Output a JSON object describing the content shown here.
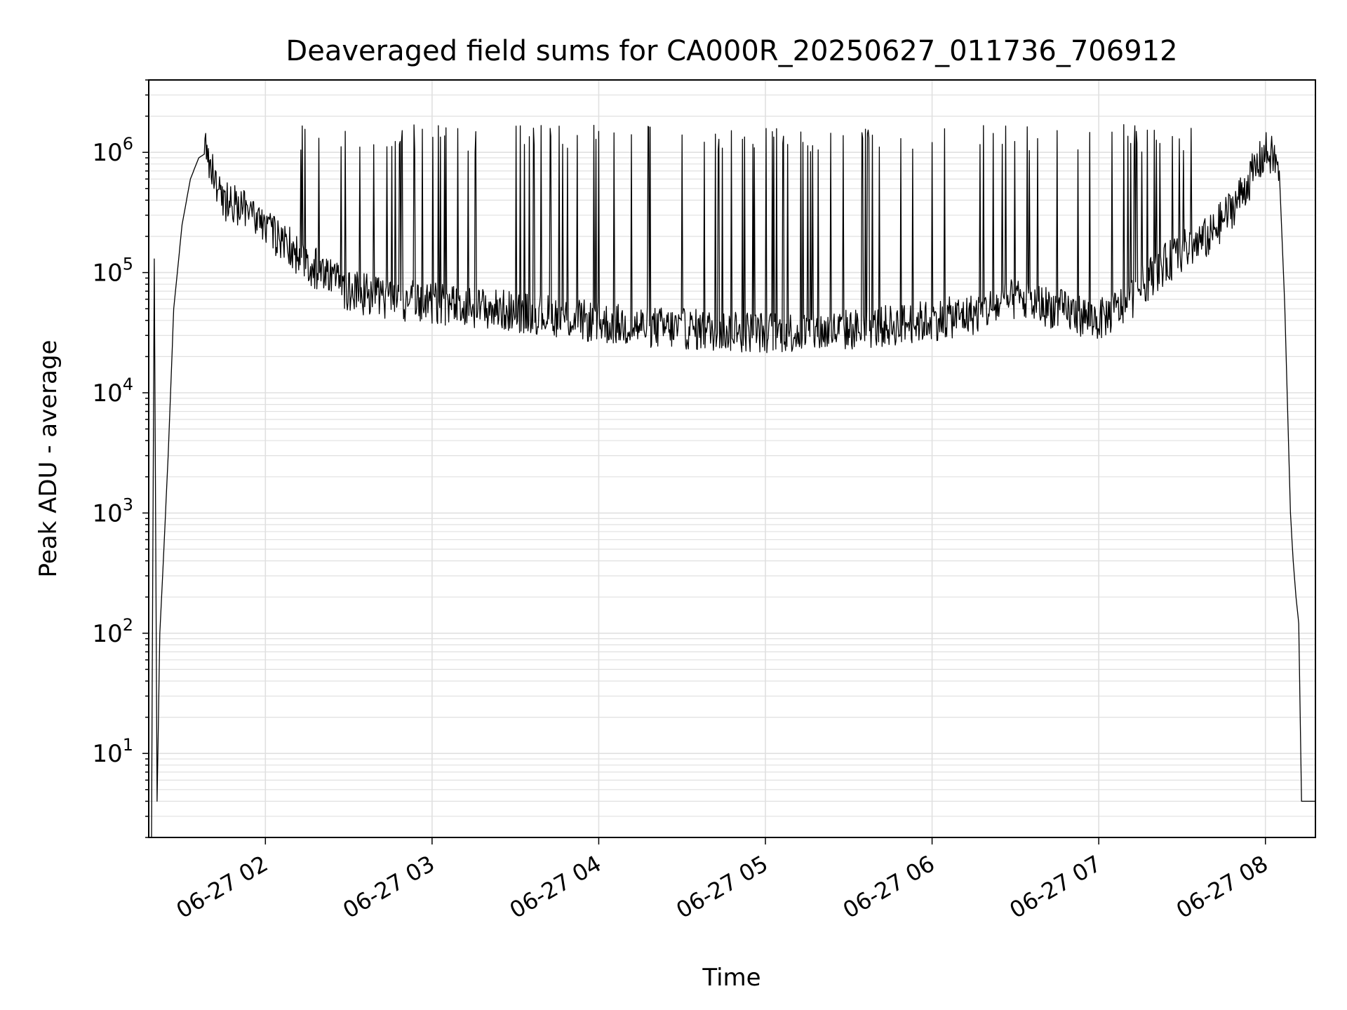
{
  "chart_data": {
    "type": "line",
    "title": "Deaveraged field sums for CA000R_20250627_011736_706912",
    "xlabel": "Time",
    "ylabel": "Peak ADU - average",
    "yscale": "log",
    "ylim": [
      2,
      4000000
    ],
    "xlim": [
      "2025-06-27 01:18",
      "2025-06-27 08:18"
    ],
    "x_tick_labels": [
      "06-27 02",
      "06-27 03",
      "06-27 04",
      "06-27 05",
      "06-27 06",
      "06-27 07",
      "06-27 08"
    ],
    "y_tick_labels": [
      {
        "base": "10",
        "exp": "1"
      },
      {
        "base": "10",
        "exp": "2"
      },
      {
        "base": "10",
        "exp": "3"
      },
      {
        "base": "10",
        "exp": "4"
      },
      {
        "base": "10",
        "exp": "5"
      },
      {
        "base": "10",
        "exp": "6"
      }
    ],
    "grid": true,
    "line_color": "#000000",
    "grid_color": "#e0e0e0",
    "series": [
      {
        "x": [
          "2025-06-27 01:19",
          "2025-06-27 01:20",
          "2025-06-27 01:21",
          "2025-06-27 01:22",
          "2025-06-27 01:23",
          "2025-06-27 01:25",
          "2025-06-27 01:27",
          "2025-06-27 01:30",
          "2025-06-27 01:33",
          "2025-06-27 01:36",
          "2025-06-27 01:39",
          "2025-06-27 01:41",
          "2025-06-27 01:43",
          "2025-06-27 01:45",
          "2025-06-27 01:50",
          "2025-06-27 02:00",
          "2025-06-27 02:10",
          "2025-06-27 02:20",
          "2025-06-27 02:30",
          "2025-06-27 02:45",
          "2025-06-27 03:00",
          "2025-06-27 03:20",
          "2025-06-27 03:40",
          "2025-06-27 04:00",
          "2025-06-27 04:20",
          "2025-06-27 04:40",
          "2025-06-27 05:00",
          "2025-06-27 05:20",
          "2025-06-27 05:40",
          "2025-06-27 06:00",
          "2025-06-27 06:15",
          "2025-06-27 06:30",
          "2025-06-27 06:45",
          "2025-06-27 07:00",
          "2025-06-27 07:10",
          "2025-06-27 07:20",
          "2025-06-27 07:30",
          "2025-06-27 07:40",
          "2025-06-27 07:50",
          "2025-06-27 07:56",
          "2025-06-27 08:00",
          "2025-06-27 08:03",
          "2025-06-27 08:05",
          "2025-06-27 08:07",
          "2025-06-27 08:09",
          "2025-06-27 08:10",
          "2025-06-27 08:11",
          "2025-06-27 08:12",
          "2025-06-27 08:13",
          "2025-06-27 08:14",
          "2025-06-27 08:18"
        ],
        "values": [
          2,
          130000,
          4,
          100,
          300,
          3000,
          50000,
          250000,
          600000,
          900000,
          1000000,
          700000,
          500000,
          400000,
          350000,
          250000,
          150000,
          100000,
          70000,
          60000,
          55000,
          50000,
          45000,
          38000,
          35000,
          33000,
          32000,
          32000,
          35000,
          40000,
          45000,
          60000,
          50000,
          40000,
          55000,
          100000,
          150000,
          200000,
          400000,
          700000,
          1000000,
          900000,
          700000,
          50000,
          1000,
          400,
          200,
          120,
          4,
          4,
          4
        ]
      }
    ],
    "spikes": {
      "start": "2025-06-27 02:10",
      "end": "2025-06-27 07:43",
      "peak_range": [
        1000000,
        1700000
      ]
    }
  }
}
